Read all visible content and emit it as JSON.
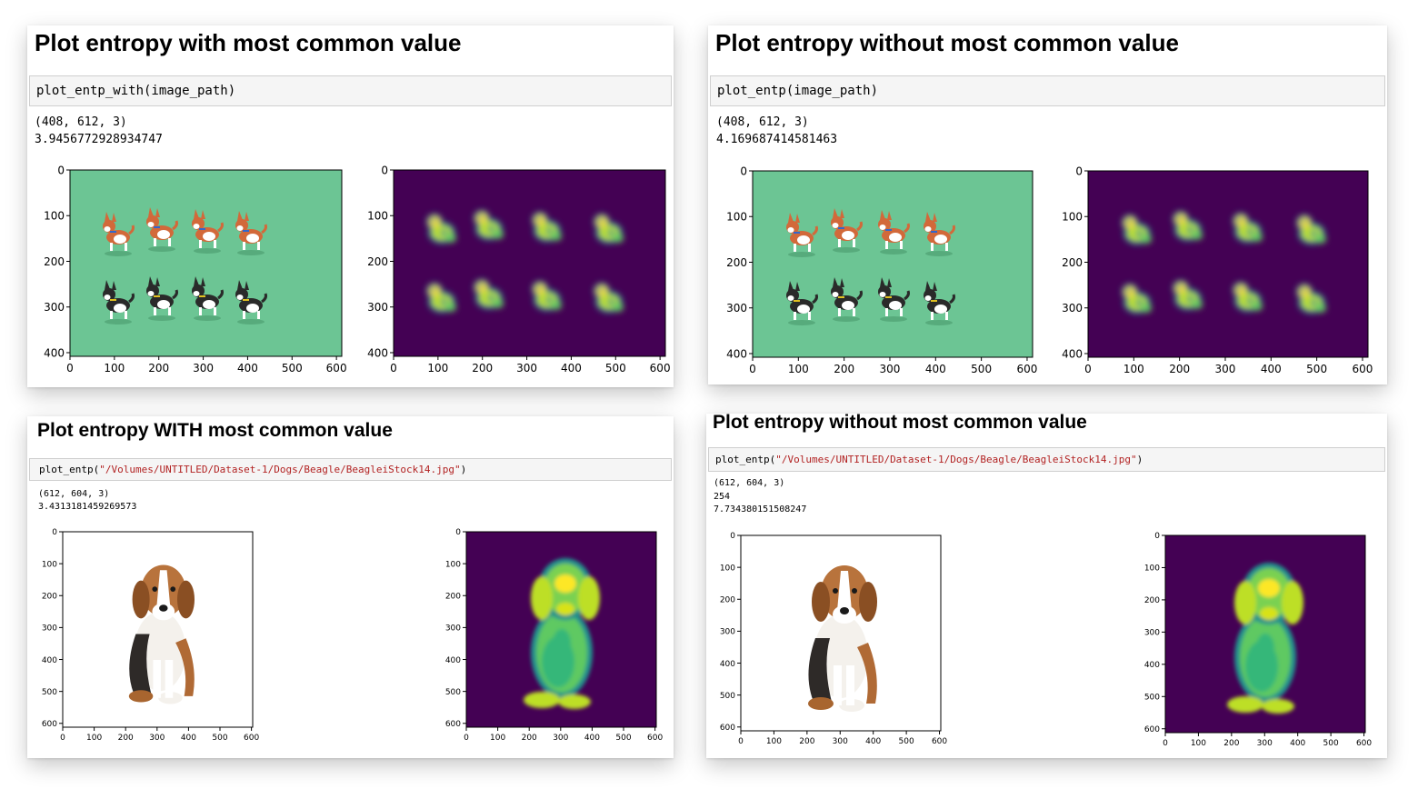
{
  "panels": [
    {
      "title": "Plot entropy with most common value",
      "code": "plot_entp_with(image_path)",
      "output": [
        "(408, 612, 3)",
        "3.9456772928934747"
      ],
      "left_plot": {
        "xticks": [
          "0",
          "100",
          "200",
          "300",
          "400",
          "500",
          "600"
        ],
        "yticks": [
          "0",
          "100",
          "200",
          "300",
          "400"
        ],
        "content": "dog-sprites-image"
      },
      "right_plot": {
        "xticks": [
          "0",
          "100",
          "200",
          "300",
          "400",
          "500",
          "600"
        ],
        "yticks": [
          "0",
          "100",
          "200",
          "300",
          "400"
        ],
        "content": "entropy-heatmap"
      }
    },
    {
      "title": "Plot entropy without most common value",
      "code": "plot_entp(image_path)",
      "output": [
        "(408, 612, 3)",
        "4.169687414581463"
      ],
      "left_plot": {
        "xticks": [
          "0",
          "100",
          "200",
          "300",
          "400",
          "500",
          "600"
        ],
        "yticks": [
          "0",
          "100",
          "200",
          "300",
          "400"
        ],
        "content": "dog-sprites-image"
      },
      "right_plot": {
        "xticks": [
          "0",
          "100",
          "200",
          "300",
          "400",
          "500",
          "600"
        ],
        "yticks": [
          "0",
          "100",
          "200",
          "300",
          "400"
        ],
        "content": "entropy-heatmap"
      }
    },
    {
      "title": "Plot entropy WITH most common value",
      "code_fn": "plot_entp(",
      "code_str": "\"/Volumes/UNTITLED/Dataset-1/Dogs/Beagle/BeagleiStock14.jpg\"",
      "code_end": ")",
      "output": [
        "(612, 604, 3)",
        "3.4313181459269573"
      ],
      "left_plot": {
        "xticks": [
          "0",
          "100",
          "200",
          "300",
          "400",
          "500",
          "600"
        ],
        "yticks": [
          "0",
          "100",
          "200",
          "300",
          "400",
          "500",
          "600"
        ],
        "content": "beagle-photo"
      },
      "right_plot": {
        "xticks": [
          "0",
          "100",
          "200",
          "300",
          "400",
          "500",
          "600"
        ],
        "yticks": [
          "0",
          "100",
          "200",
          "300",
          "400",
          "500",
          "600"
        ],
        "content": "entropy-heatmap"
      }
    },
    {
      "title": "Plot entropy without most common value",
      "code_fn": "plot_entp(",
      "code_str": "\"/Volumes/UNTITLED/Dataset-1/Dogs/Beagle/BeagleiStock14.jpg\"",
      "code_end": ")",
      "output": [
        "(612, 604, 3)",
        "254",
        "7.734380151508247"
      ],
      "left_plot": {
        "xticks": [
          "0",
          "100",
          "200",
          "300",
          "400",
          "500",
          "600"
        ],
        "yticks": [
          "0",
          "100",
          "200",
          "300",
          "400",
          "500",
          "600"
        ],
        "content": "beagle-photo"
      },
      "right_plot": {
        "xticks": [
          "0",
          "100",
          "200",
          "300",
          "400",
          "500",
          "600"
        ],
        "yticks": [
          "0",
          "100",
          "200",
          "300",
          "400",
          "500",
          "600"
        ],
        "content": "entropy-heatmap"
      }
    }
  ],
  "colors": {
    "sprite_bg": "#6cc594",
    "heat_bg": "#440154",
    "heat_mid": "#21918c",
    "heat_hi": "#bddf26",
    "heat_top": "#fde725",
    "string_red": "#b22222"
  }
}
